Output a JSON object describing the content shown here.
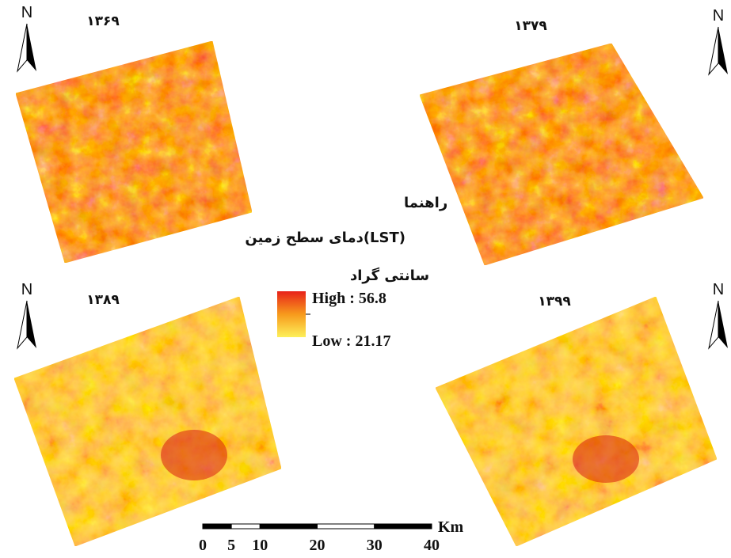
{
  "panels": [
    {
      "title": "۱۳۶۹",
      "north": "N"
    },
    {
      "title": "۱۳۷۹",
      "north": "N"
    },
    {
      "title": "۱۳۸۹",
      "north": "N"
    },
    {
      "title": "۱۳۹۹",
      "north": "N"
    }
  ],
  "legend": {
    "title": "راهنما",
    "subtitle": "دمای سطح زمین(LST)",
    "unit": "سانتی گراد",
    "high": "High : 56.8",
    "low": "Low : 21.17"
  },
  "scale_bar": {
    "unit": "Km",
    "ticks": [
      0,
      5,
      10,
      20,
      30,
      40
    ]
  }
}
